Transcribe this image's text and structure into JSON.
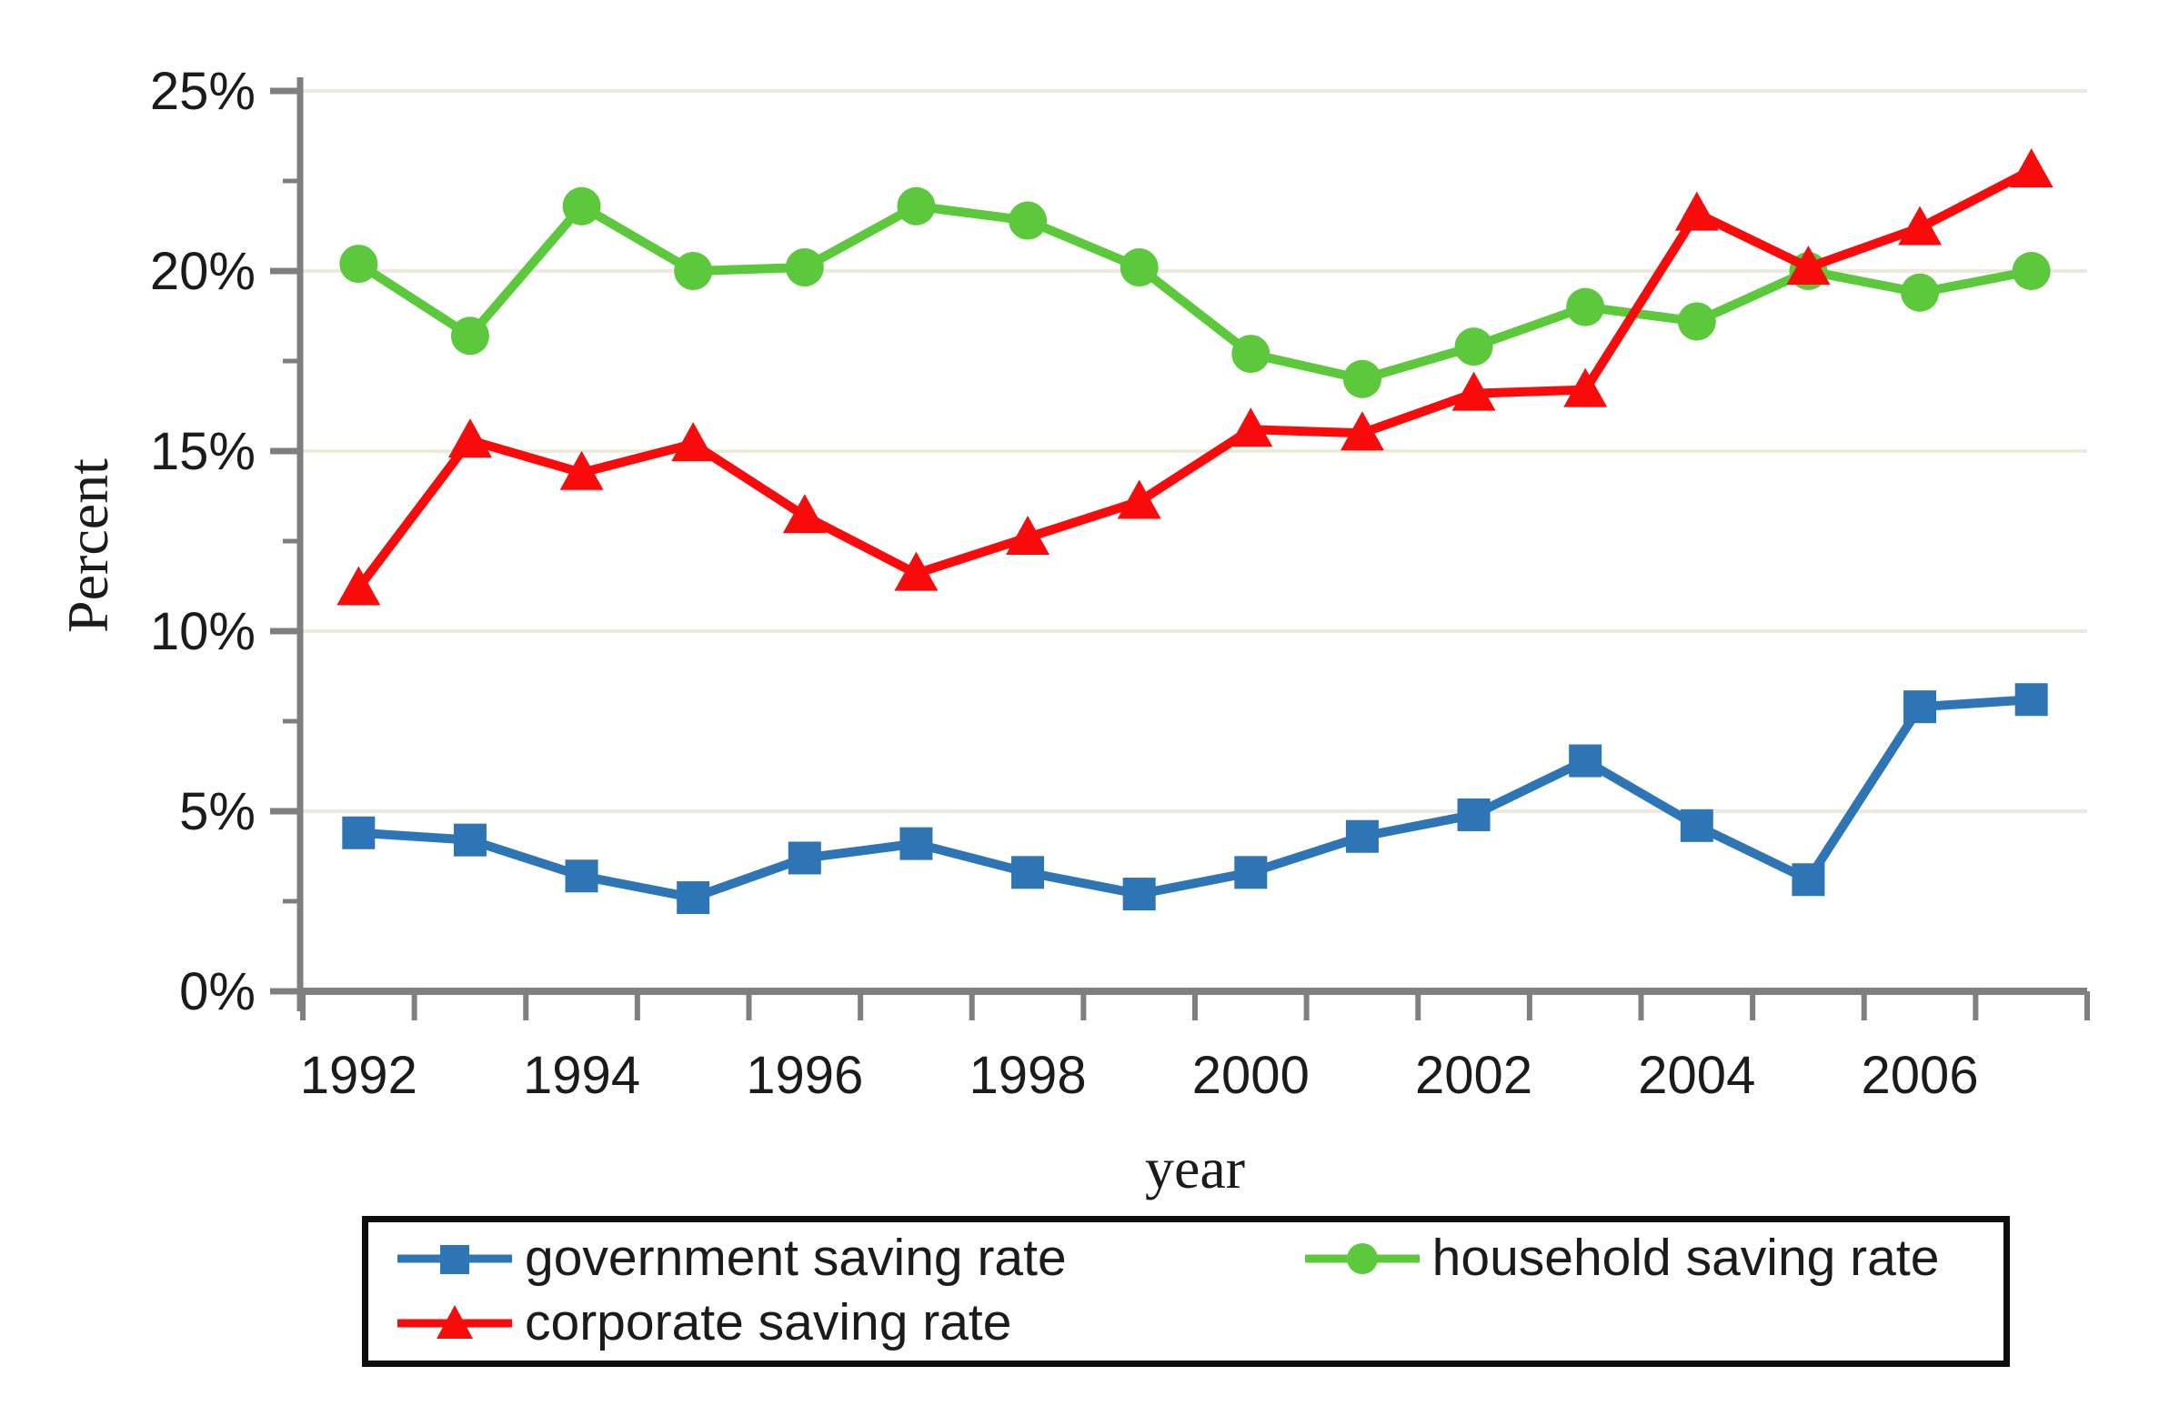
{
  "chart_data": {
    "type": "line",
    "title": "",
    "xlabel": "year",
    "ylabel": "Percent",
    "x": [
      1992,
      1993,
      1994,
      1995,
      1996,
      1997,
      1998,
      1999,
      2000,
      2001,
      2002,
      2003,
      2004,
      2005,
      2006,
      2007
    ],
    "x_tick_labels": [
      "1992",
      "1994",
      "1996",
      "1998",
      "2000",
      "2002",
      "2004",
      "2006"
    ],
    "y_tick_labels": [
      "0%",
      "5%",
      "10%",
      "15%",
      "20%",
      "25%"
    ],
    "y_tick_values": [
      0,
      5,
      10,
      15,
      20,
      25
    ],
    "ylim": [
      0,
      25
    ],
    "grid": "horizontal-only",
    "legend_position": "bottom",
    "series": [
      {
        "name": "government saving rate",
        "marker": "square",
        "color": "#2E75B6",
        "values": [
          4.4,
          4.2,
          3.2,
          2.6,
          3.7,
          4.1,
          3.3,
          2.7,
          3.3,
          4.3,
          4.9,
          6.4,
          4.6,
          3.1,
          7.9,
          8.1
        ]
      },
      {
        "name": "household saving rate",
        "marker": "circle",
        "color": "#5CC83C",
        "values": [
          20.2,
          18.2,
          21.8,
          20.0,
          20.1,
          21.8,
          21.4,
          20.1,
          17.7,
          17.0,
          17.9,
          19.0,
          18.6,
          20.0,
          19.4,
          20.0
        ]
      },
      {
        "name": "corporate saving rate",
        "marker": "triangle",
        "color": "#FA0B0B",
        "values": [
          11.2,
          15.3,
          14.4,
          15.2,
          13.2,
          11.6,
          12.6,
          13.6,
          15.6,
          15.5,
          16.6,
          16.7,
          21.6,
          20.1,
          21.2,
          22.8
        ]
      }
    ],
    "colors": {
      "gridline": "#EDE9DD",
      "axis": "#7F7F7F",
      "text": "#1b1b1b"
    }
  }
}
